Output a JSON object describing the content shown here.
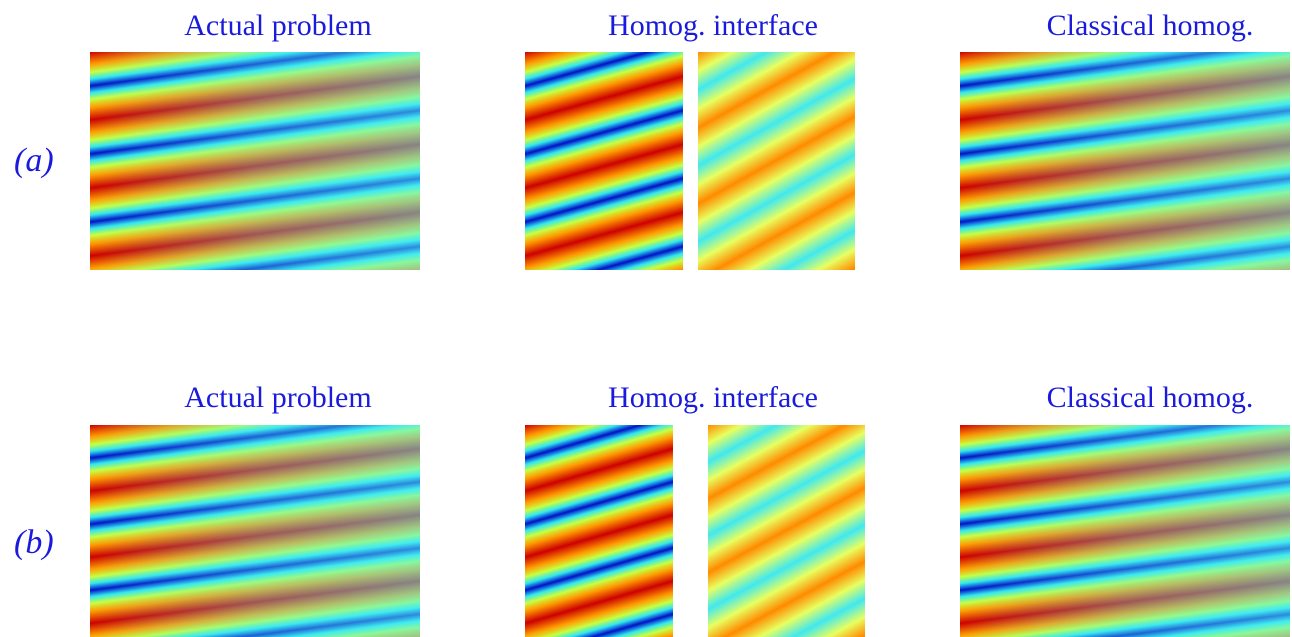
{
  "rows": [
    {
      "label": "(a)",
      "panels": [
        {
          "title": "Actual problem"
        },
        {
          "title": "Homog. interface"
        },
        {
          "title": "Classical homog."
        }
      ]
    },
    {
      "label": "(b)",
      "panels": [
        {
          "title": "Actual problem"
        },
        {
          "title": "Homog. interface"
        },
        {
          "title": "Classical homog."
        }
      ]
    }
  ]
}
